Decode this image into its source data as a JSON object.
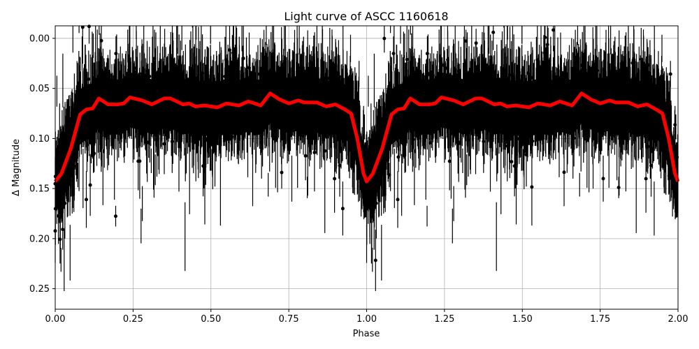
{
  "chart_data": {
    "type": "scatter",
    "title": "Light curve of ASCC 1160618",
    "xlabel": "Phase",
    "ylabel": "Δ Magnitude",
    "xlim": [
      0.0,
      2.0
    ],
    "ylim": [
      0.2705,
      -0.0125
    ],
    "y_inverted": true,
    "grid": true,
    "legend": null,
    "x_ticks": [
      "0.00",
      "0.25",
      "0.50",
      "0.75",
      "1.00",
      "1.25",
      "1.50",
      "1.75",
      "2.00"
    ],
    "y_ticks": [
      "0.00",
      "0.05",
      "0.10",
      "0.15",
      "0.20",
      "0.25"
    ],
    "series": [
      {
        "name": "observations",
        "style": "black points with vertical error bars",
        "color": "#000000",
        "description": "Dense phase-folded photometry, bulk centred near 0.05-0.10 mag with scatter from ~0.00 to beyond 0.27; deeper spread near phase 0.0/1.0/2.0",
        "typical_range": [
          0.03,
          0.12
        ]
      },
      {
        "name": "binned model",
        "style": "thick red line",
        "color": "#ff0000",
        "x": [
          0.0,
          0.02,
          0.05,
          0.08,
          0.1,
          0.12,
          0.14,
          0.17,
          0.2,
          0.22,
          0.24,
          0.28,
          0.31,
          0.35,
          0.37,
          0.41,
          0.43,
          0.45,
          0.48,
          0.52,
          0.55,
          0.59,
          0.62,
          0.66,
          0.69,
          0.72,
          0.75,
          0.78,
          0.8,
          0.84,
          0.87,
          0.9,
          0.93,
          0.95,
          0.97,
          0.99,
          1.0,
          1.02,
          1.05,
          1.08,
          1.1,
          1.12,
          1.14,
          1.17,
          1.2,
          1.22,
          1.24,
          1.28,
          1.31,
          1.35,
          1.37,
          1.41,
          1.43,
          1.45,
          1.48,
          1.52,
          1.55,
          1.59,
          1.62,
          1.66,
          1.69,
          1.72,
          1.75,
          1.78,
          1.8,
          1.84,
          1.87,
          1.9,
          1.93,
          1.95,
          1.97,
          1.99,
          2.0
        ],
        "y": [
          0.143,
          0.135,
          0.11,
          0.076,
          0.071,
          0.07,
          0.06,
          0.066,
          0.066,
          0.065,
          0.059,
          0.062,
          0.066,
          0.06,
          0.06,
          0.066,
          0.065,
          0.068,
          0.067,
          0.069,
          0.065,
          0.067,
          0.063,
          0.067,
          0.055,
          0.061,
          0.065,
          0.062,
          0.064,
          0.064,
          0.068,
          0.066,
          0.071,
          0.075,
          0.1,
          0.135,
          0.143,
          0.135,
          0.11,
          0.076,
          0.071,
          0.07,
          0.06,
          0.066,
          0.066,
          0.065,
          0.059,
          0.062,
          0.066,
          0.06,
          0.06,
          0.066,
          0.065,
          0.068,
          0.067,
          0.069,
          0.065,
          0.067,
          0.063,
          0.067,
          0.055,
          0.061,
          0.065,
          0.062,
          0.064,
          0.064,
          0.068,
          0.066,
          0.071,
          0.075,
          0.1,
          0.135,
          0.143
        ]
      }
    ]
  }
}
